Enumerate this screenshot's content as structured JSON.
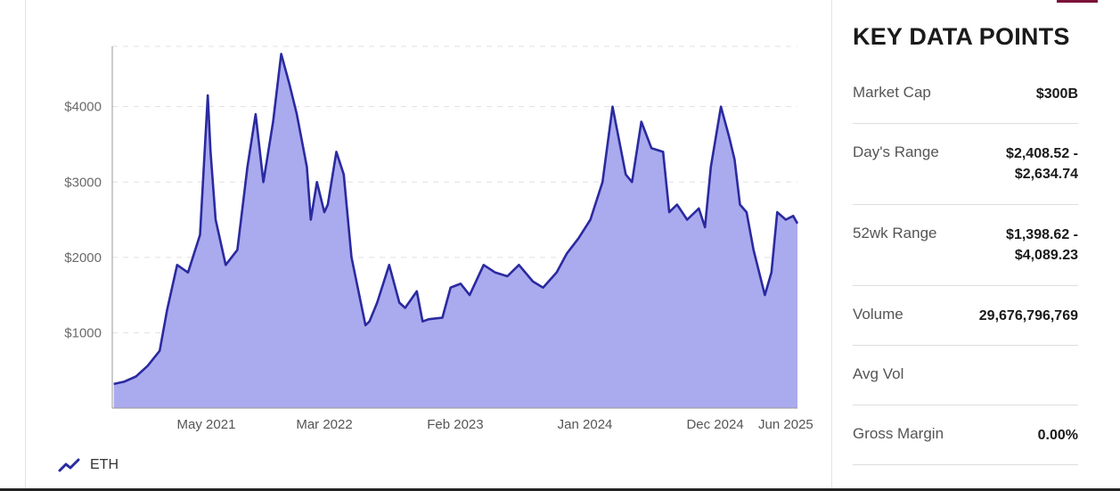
{
  "chart_data": {
    "type": "area",
    "series": [
      {
        "name": "ETH",
        "x": [
          "2020-09-05",
          "2020-10-01",
          "2020-11-01",
          "2020-12-01",
          "2021-01-01",
          "2021-01-20",
          "2021-02-15",
          "2021-03-15",
          "2021-04-15",
          "2021-05-05",
          "2021-05-12",
          "2021-05-25",
          "2021-06-20",
          "2021-07-20",
          "2021-08-15",
          "2021-09-05",
          "2021-09-25",
          "2021-10-20",
          "2021-11-10",
          "2021-12-01",
          "2021-12-20",
          "2022-01-15",
          "2022-01-25",
          "2022-02-10",
          "2022-03-01",
          "2022-03-10",
          "2022-04-01",
          "2022-04-20",
          "2022-05-10",
          "2022-06-15",
          "2022-06-25",
          "2022-07-15",
          "2022-08-15",
          "2022-09-10",
          "2022-09-25",
          "2022-10-25",
          "2022-11-09",
          "2022-11-25",
          "2022-12-30",
          "2023-01-20",
          "2023-02-15",
          "2023-03-10",
          "2023-04-15",
          "2023-05-15",
          "2023-06-15",
          "2023-07-15",
          "2023-08-20",
          "2023-09-15",
          "2023-10-20",
          "2023-11-15",
          "2023-12-15",
          "2024-01-15",
          "2024-02-15",
          "2024-03-12",
          "2024-04-15",
          "2024-05-01",
          "2024-05-25",
          "2024-06-20",
          "2024-07-20",
          "2024-08-05",
          "2024-08-25",
          "2024-09-20",
          "2024-10-20",
          "2024-11-05",
          "2024-11-20",
          "2024-12-16",
          "2025-01-06",
          "2025-01-20",
          "2025-02-03",
          "2025-02-20",
          "2025-03-10",
          "2025-04-08",
          "2025-04-25",
          "2025-05-10",
          "2025-06-01",
          "2025-06-20",
          "2025-07-01"
        ],
        "y": [
          320,
          350,
          420,
          560,
          760,
          1300,
          1900,
          1800,
          2300,
          4150,
          3400,
          2500,
          1900,
          2100,
          3200,
          3900,
          3000,
          3800,
          4700,
          4300,
          3900,
          3200,
          2500,
          3000,
          2600,
          2700,
          3400,
          3100,
          2000,
          1100,
          1150,
          1400,
          1900,
          1400,
          1330,
          1550,
          1150,
          1180,
          1200,
          1600,
          1650,
          1500,
          1900,
          1800,
          1750,
          1900,
          1680,
          1600,
          1800,
          2050,
          2250,
          2500,
          3000,
          4000,
          3100,
          3000,
          3800,
          3450,
          3400,
          2600,
          2700,
          2500,
          2650,
          2400,
          3200,
          4000,
          3600,
          3300,
          2700,
          2600,
          2100,
          1500,
          1800,
          2600,
          2500,
          2550,
          2450
        ],
        "color": "#2a2aa0",
        "fill": "#aaaaee"
      }
    ],
    "x_tick_labels": [
      "May 2021",
      "Mar 2022",
      "Feb 2023",
      "Jan 2024",
      "Dec 2024",
      "Jun 2025"
    ],
    "x_tick_dates": [
      "2021-05-01",
      "2022-03-01",
      "2023-02-01",
      "2024-01-01",
      "2024-12-01",
      "2025-06-01"
    ],
    "y_ticks": [
      1000,
      2000,
      3000,
      4000
    ],
    "y_tick_labels": [
      "$1000",
      "$2000",
      "$3000",
      "$4000"
    ],
    "xlim": [
      "2020-09-01",
      "2025-07-01"
    ],
    "ylim": [
      0,
      4800
    ],
    "grid": "horizontal dashed",
    "legend": "bottom-left"
  },
  "legend": {
    "label": "ETH",
    "icon": "trend-line-icon"
  },
  "panel": {
    "title": "KEY DATA POINTS",
    "accent_color": "#7a1038",
    "rows": [
      {
        "key": "Market Cap",
        "value": "$300B"
      },
      {
        "key": "Day's Range",
        "value": "$2,408.52 -\n$2,634.74"
      },
      {
        "key": "52wk Range",
        "value": "$1,398.62 -\n$4,089.23"
      },
      {
        "key": "Volume",
        "value": "29,676,796,769"
      },
      {
        "key": "Avg Vol",
        "value": ""
      },
      {
        "key": "Gross Margin",
        "value": "0.00%"
      }
    ]
  }
}
